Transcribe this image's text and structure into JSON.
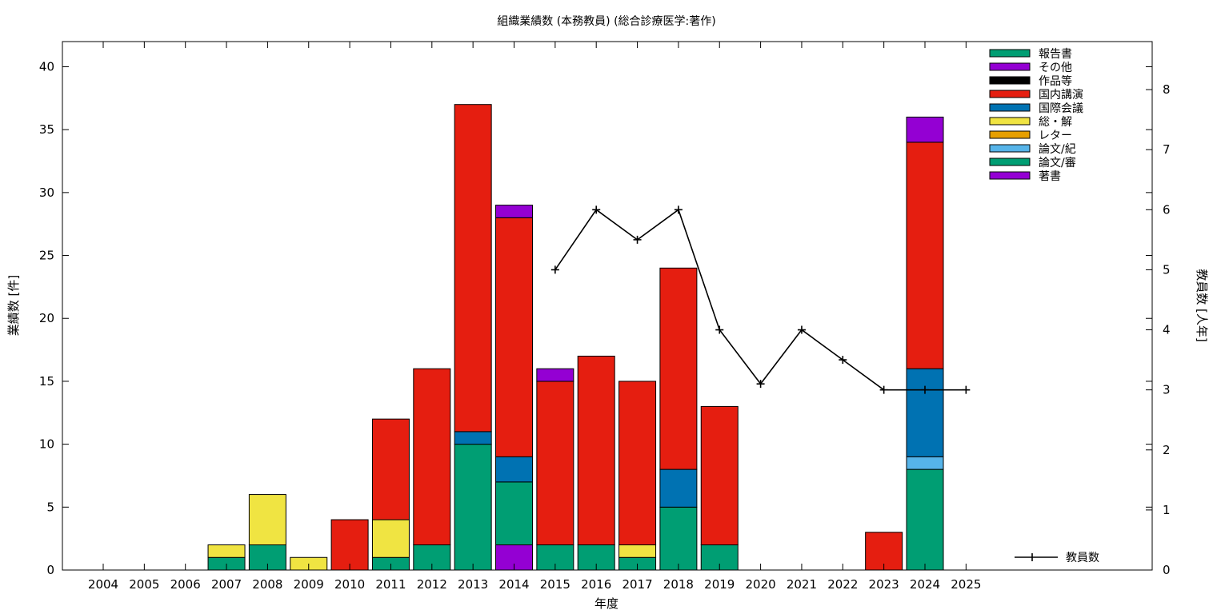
{
  "chart_data": {
    "type": "bar",
    "stacked": true,
    "title": "組織業績数 (本務教員) (総合診療医学:著作)",
    "xlabel": "年度",
    "ylabel": "業績数 [件]",
    "y2label": "教員数 [人年]",
    "ylim": [
      0,
      42
    ],
    "y2lim": [
      0,
      8.8
    ],
    "yticks": [
      0,
      5,
      10,
      15,
      20,
      25,
      30,
      35,
      40
    ],
    "y2ticks": [
      0,
      1,
      2,
      3,
      4,
      5,
      6,
      7,
      8
    ],
    "grid": false,
    "legend_position": "top-right",
    "categories": [
      "2004",
      "2005",
      "2006",
      "2007",
      "2008",
      "2009",
      "2010",
      "2011",
      "2012",
      "2013",
      "2014",
      "2015",
      "2016",
      "2017",
      "2018",
      "2019",
      "2020",
      "2021",
      "2022",
      "2023",
      "2024",
      "2025"
    ],
    "series": [
      {
        "name": "著書",
        "color": "#9400d3",
        "values": [
          0,
          0,
          0,
          0,
          0,
          0,
          0,
          0,
          0,
          0,
          2,
          0,
          0,
          0,
          0,
          0,
          0,
          0,
          0,
          0,
          0,
          0
        ]
      },
      {
        "name": "論文/審",
        "color": "#009e73",
        "values": [
          0,
          0,
          0,
          1,
          2,
          0,
          0,
          1,
          2,
          10,
          5,
          2,
          2,
          1,
          5,
          2,
          0,
          0,
          0,
          0,
          8,
          0
        ]
      },
      {
        "name": "論文/紀",
        "color": "#56b4e9",
        "values": [
          0,
          0,
          0,
          0,
          0,
          0,
          0,
          0,
          0,
          0,
          0,
          0,
          0,
          0,
          0,
          0,
          0,
          0,
          0,
          0,
          1,
          0
        ]
      },
      {
        "name": "レター",
        "color": "#e69f00",
        "values": [
          0,
          0,
          0,
          0,
          0,
          0,
          0,
          0,
          0,
          0,
          0,
          0,
          0,
          0,
          0,
          0,
          0,
          0,
          0,
          0,
          0,
          0
        ]
      },
      {
        "name": "総・解",
        "color": "#f0e442",
        "values": [
          0,
          0,
          0,
          1,
          4,
          1,
          0,
          3,
          0,
          0,
          0,
          0,
          0,
          1,
          0,
          0,
          0,
          0,
          0,
          0,
          0,
          0
        ]
      },
      {
        "name": "国際会議",
        "color": "#0072b2",
        "values": [
          0,
          0,
          0,
          0,
          0,
          0,
          0,
          0,
          0,
          1,
          2,
          0,
          0,
          0,
          3,
          0,
          0,
          0,
          0,
          0,
          7,
          0
        ]
      },
      {
        "name": "国内講演",
        "color": "#e51e10",
        "values": [
          0,
          0,
          0,
          0,
          0,
          0,
          4,
          8,
          14,
          26,
          19,
          13,
          15,
          13,
          16,
          11,
          0,
          0,
          0,
          3,
          18,
          0
        ]
      },
      {
        "name": "作品等",
        "color": "#000000",
        "values": [
          0,
          0,
          0,
          0,
          0,
          0,
          0,
          0,
          0,
          0,
          0,
          0,
          0,
          0,
          0,
          0,
          0,
          0,
          0,
          0,
          0,
          0
        ]
      },
      {
        "name": "その他",
        "color": "#9400d3",
        "values": [
          0,
          0,
          0,
          0,
          0,
          0,
          0,
          0,
          0,
          0,
          1,
          1,
          0,
          0,
          0,
          0,
          0,
          0,
          0,
          0,
          2,
          0
        ]
      },
      {
        "name": "報告書",
        "color": "#009e73",
        "values": [
          0,
          0,
          0,
          0,
          0,
          0,
          0,
          0,
          0,
          0,
          0,
          0,
          0,
          0,
          0,
          0,
          0,
          0,
          0,
          0,
          0,
          0
        ]
      }
    ],
    "legend_order": [
      "報告書",
      "その他",
      "作品等",
      "国内講演",
      "国際会議",
      "総・解",
      "レター",
      "論文/紀",
      "論文/審",
      "著書"
    ],
    "line_series": {
      "name": "教員数",
      "axis": "y2",
      "color": "#000000",
      "points": [
        {
          "x": "2015",
          "y": 5
        },
        {
          "x": "2016",
          "y": 6
        },
        {
          "x": "2017",
          "y": 5.5
        },
        {
          "x": "2018",
          "y": 6
        },
        {
          "x": "2019",
          "y": 4
        },
        {
          "x": "2020",
          "y": 3.1
        },
        {
          "x": "2021",
          "y": 4
        },
        {
          "x": "2022",
          "y": 3.5
        },
        {
          "x": "2023",
          "y": 3
        },
        {
          "x": "2024",
          "y": 3
        },
        {
          "x": "2025",
          "y": 3
        }
      ]
    }
  }
}
